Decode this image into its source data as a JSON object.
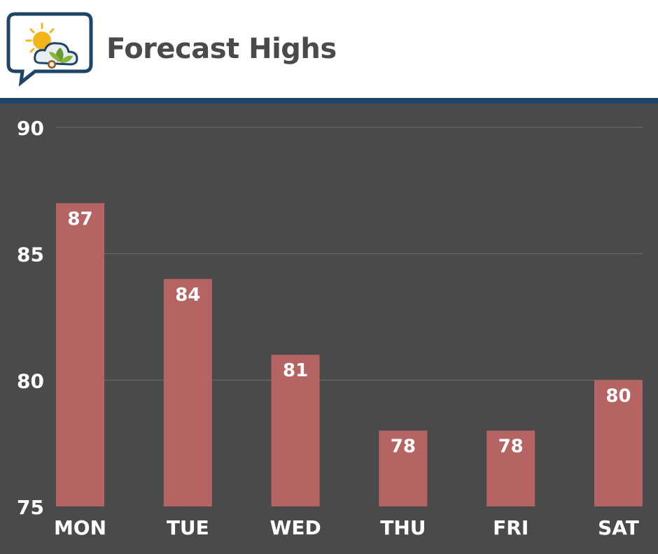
{
  "header": {
    "title": "Forecast Highs",
    "logo_icon": "sun-cloud-leaf-icon"
  },
  "colors": {
    "header_bg": "#ffffff",
    "rule": "#1d4568",
    "plot_bg": "#4a4a4a",
    "bar": "#b56363",
    "grid": "#707070",
    "text": "#ffffff",
    "title": "#4a4a4a"
  },
  "chart_data": {
    "type": "bar",
    "title": "Forecast Highs",
    "xlabel": "",
    "ylabel": "",
    "categories": [
      "MON",
      "TUE",
      "WED",
      "THU",
      "FRI",
      "SAT"
    ],
    "values": [
      87,
      84,
      81,
      78,
      78,
      80
    ],
    "data_labels": [
      "87",
      "84",
      "81",
      "78",
      "78",
      "80"
    ],
    "ylim": [
      75,
      90
    ],
    "yticks": [
      75,
      80,
      85,
      90
    ],
    "ytick_labels": [
      "75",
      "80",
      "85",
      "90"
    ],
    "grid": true,
    "legend": "none"
  }
}
